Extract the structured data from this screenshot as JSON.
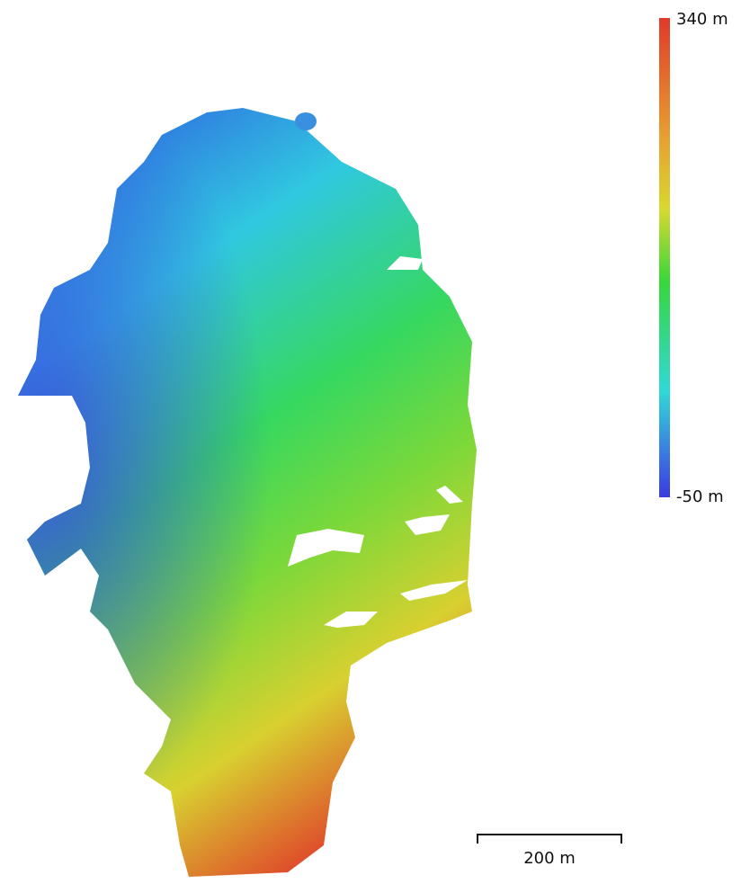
{
  "legend": {
    "max_label": "340 m",
    "min_label": "-50 m"
  },
  "scale_bar": {
    "label": "200 m"
  }
}
